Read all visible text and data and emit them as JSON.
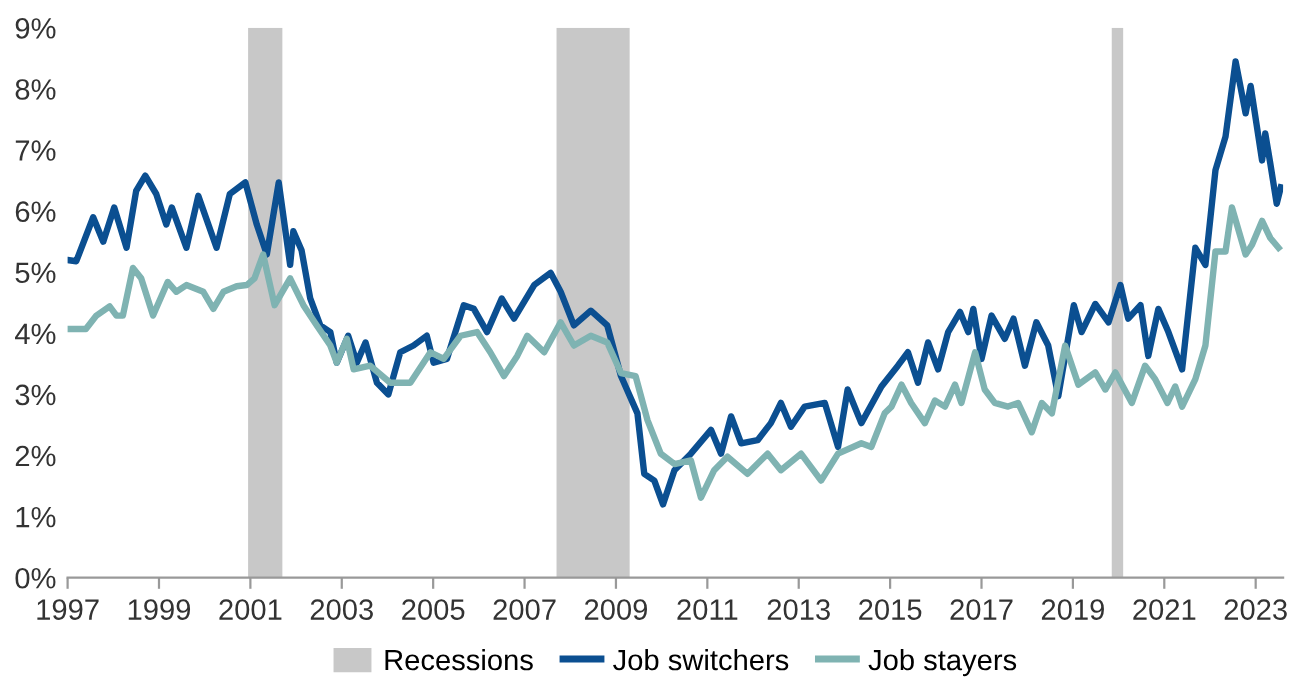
{
  "chart_data": {
    "type": "line",
    "xlim": [
      1997,
      2023.6
    ],
    "xticks": [
      1997,
      1999,
      2001,
      2003,
      2005,
      2007,
      2009,
      2011,
      2013,
      2015,
      2017,
      2019,
      2021,
      2023
    ],
    "ylim": [
      0,
      9
    ],
    "yticks": [
      {
        "value": 0,
        "label": "0%"
      },
      {
        "value": 1,
        "label": "1%"
      },
      {
        "value": 2,
        "label": "2%"
      },
      {
        "value": 3,
        "label": "3%"
      },
      {
        "value": 4,
        "label": "4%"
      },
      {
        "value": 5,
        "label": "5%"
      },
      {
        "value": 6,
        "label": "6%"
      },
      {
        "value": 7,
        "label": "7%"
      },
      {
        "value": 8,
        "label": "8%"
      },
      {
        "value": 9,
        "label": "9%"
      }
    ],
    "grid": false,
    "legend": "bottom",
    "marker": "none",
    "line_style": "solid",
    "bands": [
      {
        "axis": "x",
        "from": 2000.95,
        "to": 2001.7,
        "label": "Recessions",
        "color": "#c8c8c8"
      },
      {
        "axis": "x",
        "from": 2007.7,
        "to": 2009.3,
        "color": "#c8c8c8"
      },
      {
        "axis": "x",
        "from": 2019.85,
        "to": 2020.1,
        "color": "#c8c8c8"
      }
    ],
    "series": [
      {
        "name": "Job switchers",
        "color": "#0b4f91",
        "x": [
          1997.0,
          1997.19,
          1997.56,
          1997.78,
          1998.02,
          1998.29,
          1998.5,
          1998.7,
          1998.94,
          1999.16,
          1999.28,
          1999.6,
          1999.86,
          2000.26,
          2000.55,
          2000.89,
          2001.14,
          2001.36,
          2001.62,
          2001.87,
          2001.94,
          2002.12,
          2002.31,
          2002.53,
          2002.75,
          2002.89,
          2003.14,
          2003.33,
          2003.52,
          2003.77,
          2004.02,
          2004.28,
          2004.57,
          2004.86,
          2005.01,
          2005.3,
          2005.67,
          2005.89,
          2006.18,
          2006.5,
          2006.77,
          2007.21,
          2007.57,
          2007.79,
          2008.08,
          2008.45,
          2008.81,
          2009.11,
          2009.47,
          2009.62,
          2009.84,
          2010.03,
          2010.28,
          2010.64,
          2011.08,
          2011.3,
          2011.52,
          2011.74,
          2012.1,
          2012.39,
          2012.61,
          2012.83,
          2013.13,
          2013.57,
          2013.86,
          2014.07,
          2014.37,
          2014.81,
          2015.17,
          2015.39,
          2015.61,
          2015.83,
          2016.05,
          2016.27,
          2016.53,
          2016.71,
          2016.82,
          2017.0,
          2017.22,
          2017.51,
          2017.7,
          2017.95,
          2018.2,
          2018.46,
          2018.68,
          2019.02,
          2019.19,
          2019.49,
          2019.78,
          2020.04,
          2020.21,
          2020.48,
          2020.65,
          2020.87,
          2021.09,
          2021.39,
          2021.68,
          2021.9,
          2022.12,
          2022.34,
          2022.56,
          2022.78,
          2022.89,
          2023.14,
          2023.21,
          2023.32,
          2023.46,
          2023.55
        ],
        "values": [
          5.2,
          5.18,
          5.9,
          5.5,
          6.06,
          5.4,
          6.33,
          6.58,
          6.28,
          5.78,
          6.06,
          5.4,
          6.25,
          5.4,
          6.28,
          6.47,
          5.78,
          5.29,
          6.47,
          5.12,
          5.67,
          5.36,
          4.57,
          4.13,
          4.02,
          3.52,
          3.96,
          3.52,
          3.85,
          3.19,
          3.0,
          3.69,
          3.8,
          3.96,
          3.52,
          3.58,
          4.46,
          4.4,
          4.02,
          4.57,
          4.24,
          4.79,
          4.99,
          4.68,
          4.13,
          4.37,
          4.13,
          3.3,
          2.69,
          1.7,
          1.59,
          1.2,
          1.76,
          2.03,
          2.42,
          2.03,
          2.64,
          2.2,
          2.25,
          2.53,
          2.86,
          2.47,
          2.8,
          2.86,
          2.14,
          3.08,
          2.53,
          3.13,
          3.47,
          3.69,
          3.19,
          3.85,
          3.41,
          4.02,
          4.35,
          4.02,
          4.4,
          3.58,
          4.29,
          3.91,
          4.24,
          3.47,
          4.18,
          3.8,
          2.97,
          4.46,
          4.02,
          4.48,
          4.18,
          4.79,
          4.24,
          4.46,
          3.63,
          4.4,
          4.02,
          3.41,
          5.4,
          5.12,
          6.67,
          7.22,
          8.45,
          7.6,
          8.05,
          6.83,
          7.27,
          6.78,
          6.12,
          6.39
        ]
      },
      {
        "name": "Job stayers",
        "color": "#7fb3b2",
        "x": [
          1997.0,
          1997.4,
          1997.63,
          1997.92,
          1998.07,
          1998.21,
          1998.43,
          1998.61,
          1998.87,
          1999.19,
          1999.38,
          1999.6,
          1999.97,
          2000.19,
          2000.41,
          2000.7,
          2000.92,
          2001.09,
          2001.28,
          2001.53,
          2001.87,
          2002.16,
          2002.45,
          2002.75,
          2002.89,
          2003.11,
          2003.26,
          2003.62,
          2004.06,
          2004.5,
          2004.94,
          2005.23,
          2005.6,
          2005.96,
          2006.25,
          2006.55,
          2006.84,
          2007.06,
          2007.43,
          2007.79,
          2008.08,
          2008.45,
          2008.81,
          2009.11,
          2009.43,
          2009.69,
          2009.98,
          2010.28,
          2010.64,
          2010.86,
          2011.15,
          2011.44,
          2011.88,
          2012.32,
          2012.61,
          2013.05,
          2013.49,
          2013.86,
          2014.37,
          2014.59,
          2014.88,
          2015.03,
          2015.25,
          2015.46,
          2015.76,
          2015.98,
          2016.2,
          2016.42,
          2016.56,
          2016.86,
          2017.07,
          2017.29,
          2017.58,
          2017.8,
          2018.1,
          2018.32,
          2018.54,
          2018.83,
          2019.12,
          2019.49,
          2019.71,
          2019.93,
          2020.29,
          2020.58,
          2020.8,
          2021.07,
          2021.24,
          2021.39,
          2021.68,
          2021.9,
          2022.12,
          2022.34,
          2022.48,
          2022.78,
          2022.92,
          2023.14,
          2023.32,
          2023.5
        ],
        "values": [
          4.07,
          4.07,
          4.29,
          4.44,
          4.29,
          4.29,
          5.07,
          4.9,
          4.29,
          4.84,
          4.68,
          4.79,
          4.68,
          4.4,
          4.68,
          4.77,
          4.79,
          4.9,
          5.29,
          4.46,
          4.9,
          4.46,
          4.13,
          3.8,
          3.52,
          3.91,
          3.41,
          3.47,
          3.19,
          3.19,
          3.69,
          3.58,
          3.96,
          4.02,
          3.69,
          3.3,
          3.63,
          3.96,
          3.69,
          4.18,
          3.8,
          3.96,
          3.85,
          3.35,
          3.3,
          2.58,
          2.03,
          1.86,
          1.92,
          1.31,
          1.76,
          1.98,
          1.7,
          2.03,
          1.76,
          2.03,
          1.59,
          2.03,
          2.2,
          2.14,
          2.69,
          2.8,
          3.16,
          2.86,
          2.53,
          2.9,
          2.8,
          3.16,
          2.86,
          3.69,
          3.08,
          2.86,
          2.8,
          2.86,
          2.38,
          2.86,
          2.69,
          3.8,
          3.16,
          3.36,
          3.08,
          3.36,
          2.86,
          3.47,
          3.25,
          2.86,
          3.13,
          2.8,
          3.25,
          3.8,
          5.34,
          5.34,
          6.06,
          5.29,
          5.45,
          5.84,
          5.56,
          5.4
        ]
      }
    ]
  }
}
